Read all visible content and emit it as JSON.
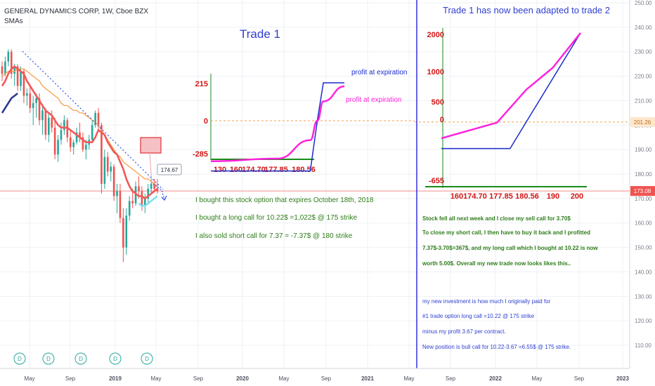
{
  "header": {
    "symbol_line": "GENERAL DYNAMICS CORP, 1W, Cboe BZX",
    "indicators": "SMAs"
  },
  "colors": {
    "up": "#26a69a",
    "down": "#ef5350",
    "sma_fast": "#f05a5a",
    "sma_slow": "#f5a04a",
    "sma_aqua": "#7fe0f0",
    "sma_navy": "#2b3a8c",
    "trendline": "#2f54eb",
    "annotation_green": "#2e7d1a",
    "annotation_blue": "#2f3fcf",
    "annotation_red": "#d21414",
    "magenta": "#ff22dd"
  },
  "chart_data": {
    "type": "line",
    "title": "GENERAL DYNAMICS CORP, 1W, Cboe BZX",
    "price_axis": {
      "ticks": [
        "250.00",
        "240.00",
        "230.00",
        "220.00",
        "210.00",
        "200.00",
        "190.00",
        "180.00",
        "170.00",
        "160.00",
        "150.00",
        "140.00",
        "130.00",
        "120.00",
        "110.00"
      ],
      "last_price_label": "173.08",
      "marker_label": "201.26",
      "callout_label": "174.67"
    },
    "time_axis": {
      "ticks": [
        "May",
        "Sep",
        "2019",
        "May",
        "Sep",
        "2020",
        "May",
        "Sep",
        "2021",
        "May",
        "Sep",
        "2022",
        "May",
        "Sep",
        "2023"
      ]
    },
    "candles_ohlc": [
      [
        224,
        226,
        218,
        221
      ],
      [
        221,
        228,
        220,
        226
      ],
      [
        226,
        231,
        224,
        230
      ],
      [
        230,
        231,
        219,
        221
      ],
      [
        221,
        225,
        216,
        224
      ],
      [
        224,
        225,
        214,
        216
      ],
      [
        216,
        224,
        214,
        222
      ],
      [
        222,
        223,
        209,
        212
      ],
      [
        212,
        215,
        208,
        213
      ],
      [
        213,
        216,
        205,
        207
      ],
      [
        207,
        212,
        200,
        209
      ],
      [
        209,
        213,
        203,
        211
      ],
      [
        211,
        213,
        200,
        202
      ],
      [
        202,
        208,
        196,
        206
      ],
      [
        206,
        207,
        194,
        196
      ],
      [
        196,
        205,
        193,
        203
      ],
      [
        203,
        206,
        197,
        199
      ],
      [
        199,
        203,
        186,
        188
      ],
      [
        188,
        196,
        185,
        194
      ],
      [
        194,
        201,
        192,
        198
      ],
      [
        198,
        204,
        196,
        202
      ],
      [
        202,
        203,
        193,
        195
      ],
      [
        195,
        198,
        189,
        191
      ],
      [
        191,
        194,
        188,
        193
      ],
      [
        193,
        199,
        192,
        197
      ],
      [
        197,
        201,
        193,
        195
      ],
      [
        195,
        197,
        189,
        190
      ],
      [
        190,
        194,
        186,
        192
      ],
      [
        192,
        196,
        190,
        194
      ],
      [
        194,
        202,
        193,
        200
      ],
      [
        200,
        206,
        199,
        205
      ],
      [
        205,
        207,
        198,
        200
      ],
      [
        200,
        201,
        172,
        176
      ],
      [
        176,
        190,
        174,
        187
      ],
      [
        187,
        189,
        179,
        181
      ],
      [
        181,
        185,
        177,
        183
      ],
      [
        183,
        184,
        169,
        171
      ],
      [
        171,
        176,
        164,
        173
      ],
      [
        173,
        176,
        160,
        162
      ],
      [
        162,
        166,
        144,
        150
      ],
      [
        150,
        166,
        147,
        163
      ],
      [
        163,
        171,
        161,
        169
      ],
      [
        169,
        174,
        166,
        168
      ],
      [
        168,
        177,
        167,
        175
      ],
      [
        175,
        179,
        170,
        173
      ],
      [
        173,
        175,
        165,
        167
      ],
      [
        167,
        172,
        164,
        170
      ],
      [
        170,
        176,
        168,
        174
      ],
      [
        174,
        178,
        172,
        176
      ],
      [
        176,
        178,
        173,
        174
      ],
      [
        174,
        178,
        172,
        173
      ]
    ],
    "series": [
      {
        "name": "",
        "values": [
          220,
          221,
          222,
          222,
          222,
          223,
          223,
          223,
          222,
          221,
          220,
          219,
          218,
          216,
          215,
          214,
          213,
          212,
          211,
          209,
          208,
          208,
          207,
          206,
          206,
          205,
          205,
          204,
          203,
          202,
          201,
          200,
          198,
          196,
          194,
          192,
          190,
          188,
          187,
          185,
          184,
          183,
          182,
          181,
          180,
          179,
          178,
          178,
          177,
          176,
          175
        ]
      },
      {
        "name": "",
        "values": [
          216,
          218,
          221,
          223,
          224,
          223,
          222,
          221,
          218,
          216,
          214,
          212,
          210,
          208,
          206,
          205,
          204,
          202,
          200,
          199,
          199,
          199,
          198,
          197,
          196,
          195,
          194,
          193,
          193,
          193,
          195,
          198,
          197,
          196,
          193,
          191,
          189,
          188,
          185,
          182,
          178,
          175,
          173,
          172,
          171,
          171,
          170,
          171,
          172,
          173,
          174
        ]
      },
      {
        "name": "",
        "values": [
          null,
          null,
          null,
          null,
          null,
          null,
          null,
          null,
          null,
          null,
          null,
          null,
          null,
          null,
          null,
          null,
          null,
          null,
          null,
          null,
          null,
          null,
          null,
          null,
          null,
          null,
          null,
          null,
          null,
          null,
          null,
          null,
          null,
          null,
          null,
          null,
          null,
          null,
          null,
          null,
          null,
          null,
          null,
          null,
          168,
          167,
          167,
          168,
          169,
          170,
          171
        ]
      },
      {
        "name": "",
        "values": [
          205,
          207,
          209,
          211,
          212,
          213,
          null,
          null,
          null,
          null,
          null,
          null,
          null,
          null,
          null,
          null,
          null,
          null,
          null,
          null,
          null,
          null,
          null,
          null,
          null,
          null,
          null,
          null,
          null,
          null,
          null,
          null,
          null,
          null,
          null,
          null,
          null,
          null,
          null,
          null,
          null,
          null,
          null,
          null,
          null,
          null,
          null,
          null,
          null,
          null,
          null
        ]
      }
    ],
    "grid": true,
    "legend": "none"
  },
  "events": [
    "D",
    "D",
    "D",
    "D",
    "D"
  ],
  "trade1": {
    "title": "Trade 1",
    "y_labels": [
      "215",
      "0",
      "-285"
    ],
    "x_labels": [
      "130",
      "160",
      "174.70",
      "177.85",
      "180.56"
    ],
    "label_blue": "profit at expiration",
    "label_magenta": "profit at expiration",
    "curve_blue": [
      [
        130,
        -285
      ],
      [
        174.7,
        -285
      ],
      [
        177.85,
        0
      ],
      [
        180.56,
        215
      ],
      [
        190,
        215
      ]
    ],
    "curve_magenta": [
      [
        130,
        -230
      ],
      [
        160,
        -215
      ],
      [
        174.7,
        -110
      ],
      [
        177.85,
        0
      ],
      [
        180.56,
        110
      ],
      [
        190,
        195
      ]
    ]
  },
  "trade2": {
    "title": "Trade 1 has now been adapted to trade 2",
    "y_labels": [
      "2000",
      "1000",
      "500",
      "0",
      "-655"
    ],
    "x_labels": [
      "160",
      "174.70",
      "177.85",
      "180.56",
      "190",
      "200"
    ],
    "curve_blue": [
      [
        150,
        -655
      ],
      [
        174.7,
        -655
      ],
      [
        200,
        2000
      ]
    ],
    "curve_magenta": [
      [
        150,
        -420
      ],
      [
        170,
        -60
      ],
      [
        180.56,
        700
      ],
      [
        190,
        1200
      ],
      [
        200,
        2000
      ]
    ]
  },
  "notes_left": [
    "I bought this stock option that expires October 18th, 2018",
    "I bought a long call for 10.22$ =1,022$ @ 175 strike",
    "I also sold short call for 7.37 = -7.37$ @ 180 strike"
  ],
  "notes_right_green": [
    "Stock fell all next week and I close my sell call for 3.70$",
    "To close my short call, I then have to buy it back and I profitted",
    "7.37$-3.70$=367$, and my long call which I bought at 10.22 is now",
    "worth 5.00$. Overall my new trade now looks likes this.."
  ],
  "notes_right_blue": [
    "my new investment is how much I originally paid for",
    "#1 trade option long call =10.22 @ 175 strike",
    "minus my profit 3.67 per contract.",
    "New position is bull call for 10.22-3.67 =6.55$ @ 175 strike."
  ]
}
